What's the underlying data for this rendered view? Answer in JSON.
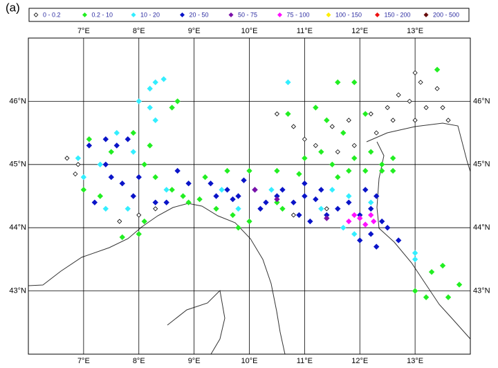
{
  "chart_data": {
    "type": "scatter",
    "panel_label": "(a)",
    "xlim": [
      6,
      14
    ],
    "ylim": [
      42,
      47
    ],
    "grid": true,
    "xticks": [
      {
        "value": 7,
        "label": "7°E"
      },
      {
        "value": 8,
        "label": "8°E"
      },
      {
        "value": 9,
        "label": "9°E"
      },
      {
        "value": 10,
        "label": "10°E"
      },
      {
        "value": 11,
        "label": "11°E"
      },
      {
        "value": 12,
        "label": "12°E"
      },
      {
        "value": 13,
        "label": "13°E"
      }
    ],
    "yticks": [
      {
        "value": 43,
        "label": "43°N"
      },
      {
        "value": 44,
        "label": "44°N"
      },
      {
        "value": 45,
        "label": "45°N"
      },
      {
        "value": 46,
        "label": "46°N"
      }
    ],
    "series": [
      {
        "name": "0 - 0.2",
        "color": "#000000",
        "filled": false,
        "x": [
          13.0,
          13.1,
          13.4,
          12.7,
          12.9,
          13.2,
          13.5,
          12.5,
          12.2,
          11.8,
          11.5,
          11.0,
          11.2,
          11.6,
          11.9,
          12.3,
          12.6,
          13.0,
          13.6,
          10.5,
          10.8,
          6.7,
          6.9,
          6.85,
          7.65,
          8.0,
          8.3,
          11.4,
          10.8
        ],
        "y": [
          46.45,
          46.3,
          46.2,
          46.1,
          46.0,
          45.9,
          45.9,
          45.9,
          45.8,
          45.7,
          45.6,
          45.4,
          45.3,
          45.2,
          45.3,
          45.5,
          45.7,
          45.7,
          45.7,
          45.8,
          45.6,
          45.1,
          45.0,
          44.85,
          44.1,
          44.2,
          44.3,
          44.3,
          44.2
        ]
      },
      {
        "name": "0.2 - 10",
        "color": "#22ee22",
        "filled": true,
        "x": [
          13.4,
          11.6,
          11.9,
          10.7,
          11.2,
          11.4,
          11.7,
          12.1,
          11.0,
          11.5,
          11.8,
          12.1,
          12.4,
          12.6,
          11.3,
          11.9,
          12.2,
          11.6,
          10.9,
          10.5,
          10.0,
          9.6,
          9.2,
          8.8,
          8.9,
          9.1,
          9.4,
          9.7,
          10.0,
          9.8,
          10.5,
          10.6,
          8.6,
          8.3,
          8.1,
          8.2,
          7.9,
          7.5,
          7.1,
          7.0,
          7.3,
          7.7,
          8.0,
          8.1,
          8.6,
          8.7,
          13.0,
          13.2,
          13.8,
          13.6,
          13.3,
          13.5,
          12.4,
          12.6
        ],
        "y": [
          46.5,
          46.3,
          46.3,
          45.8,
          45.9,
          45.7,
          45.5,
          45.8,
          45.1,
          45.0,
          44.9,
          44.9,
          45.0,
          44.9,
          45.2,
          45.1,
          45.2,
          44.8,
          44.85,
          44.9,
          44.9,
          44.9,
          44.8,
          44.5,
          44.4,
          44.45,
          44.3,
          44.2,
          44.1,
          44.0,
          44.4,
          44.3,
          44.6,
          44.8,
          45.0,
          45.3,
          45.5,
          45.2,
          45.4,
          44.6,
          44.5,
          43.85,
          43.9,
          44.1,
          45.9,
          46.0,
          43.0,
          42.9,
          43.1,
          42.9,
          43.3,
          43.4,
          44.9,
          45.1
        ]
      },
      {
        "name": "10 - 20",
        "color": "#33eeff",
        "filled": true,
        "x": [
          8.0,
          8.2,
          8.2,
          8.3,
          8.45,
          8.3,
          7.6,
          7.9,
          7.3,
          6.9,
          7.0,
          7.4,
          7.8,
          8.5,
          10.7,
          9.5,
          9.8,
          11.3,
          11.7,
          11.9,
          13.0,
          13.0,
          11.5,
          11.8,
          12.2,
          10.4
        ],
        "y": [
          46.0,
          45.9,
          46.2,
          46.3,
          46.35,
          45.7,
          45.5,
          45.2,
          45.0,
          45.1,
          44.8,
          44.3,
          44.3,
          44.6,
          46.3,
          44.6,
          44.3,
          44.3,
          44.0,
          43.9,
          43.6,
          43.5,
          44.6,
          44.5,
          44.4,
          44.6
        ]
      },
      {
        "name": "20 - 50",
        "color": "#0a14c8",
        "filled": true,
        "x": [
          7.4,
          7.6,
          7.8,
          7.1,
          7.5,
          7.7,
          7.9,
          8.0,
          8.3,
          8.5,
          8.9,
          9.3,
          9.6,
          9.8,
          10.1,
          10.3,
          10.6,
          10.8,
          10.9,
          11.0,
          11.2,
          11.4,
          11.6,
          11.8,
          12.0,
          12.2,
          12.4,
          12.2,
          12.5,
          12.7,
          12.0,
          12.3,
          9.9,
          10.2,
          10.5,
          11.0,
          11.3,
          11.1,
          9.4,
          9.7,
          12.1,
          12.3,
          8.7,
          7.4,
          7.2
        ],
        "y": [
          45.4,
          45.3,
          45.4,
          45.3,
          44.8,
          44.7,
          44.5,
          44.8,
          44.4,
          44.4,
          44.7,
          44.7,
          44.6,
          44.5,
          44.6,
          44.4,
          44.6,
          44.4,
          44.2,
          44.5,
          44.45,
          44.2,
          44.3,
          44.4,
          44.2,
          44.3,
          44.1,
          43.9,
          44.0,
          43.8,
          43.8,
          43.7,
          44.75,
          44.3,
          44.5,
          44.7,
          44.6,
          44.1,
          44.5,
          44.45,
          44.6,
          44.5,
          44.9,
          45.0,
          44.4
        ]
      },
      {
        "name": "50 - 75",
        "color": "#7a10a8",
        "filled": true,
        "x": [
          10.1,
          10.5,
          11.4
        ],
        "y": [
          44.6,
          44.45,
          44.15
        ]
      },
      {
        "name": "75 - 100",
        "color": "#ff10ff",
        "filled": true,
        "x": [
          11.9,
          12.0,
          12.2,
          12.25,
          11.8,
          12.1
        ],
        "y": [
          44.2,
          44.15,
          44.2,
          44.1,
          44.1,
          44.05
        ]
      },
      {
        "name": "100 - 150",
        "color": "#ffee00",
        "filled": true,
        "x": [],
        "y": []
      },
      {
        "name": "150 - 200",
        "color": "#ee1010",
        "filled": true,
        "x": [],
        "y": []
      },
      {
        "name": "200 - 500",
        "color": "#660a0a",
        "filled": true,
        "x": [],
        "y": []
      }
    ]
  }
}
